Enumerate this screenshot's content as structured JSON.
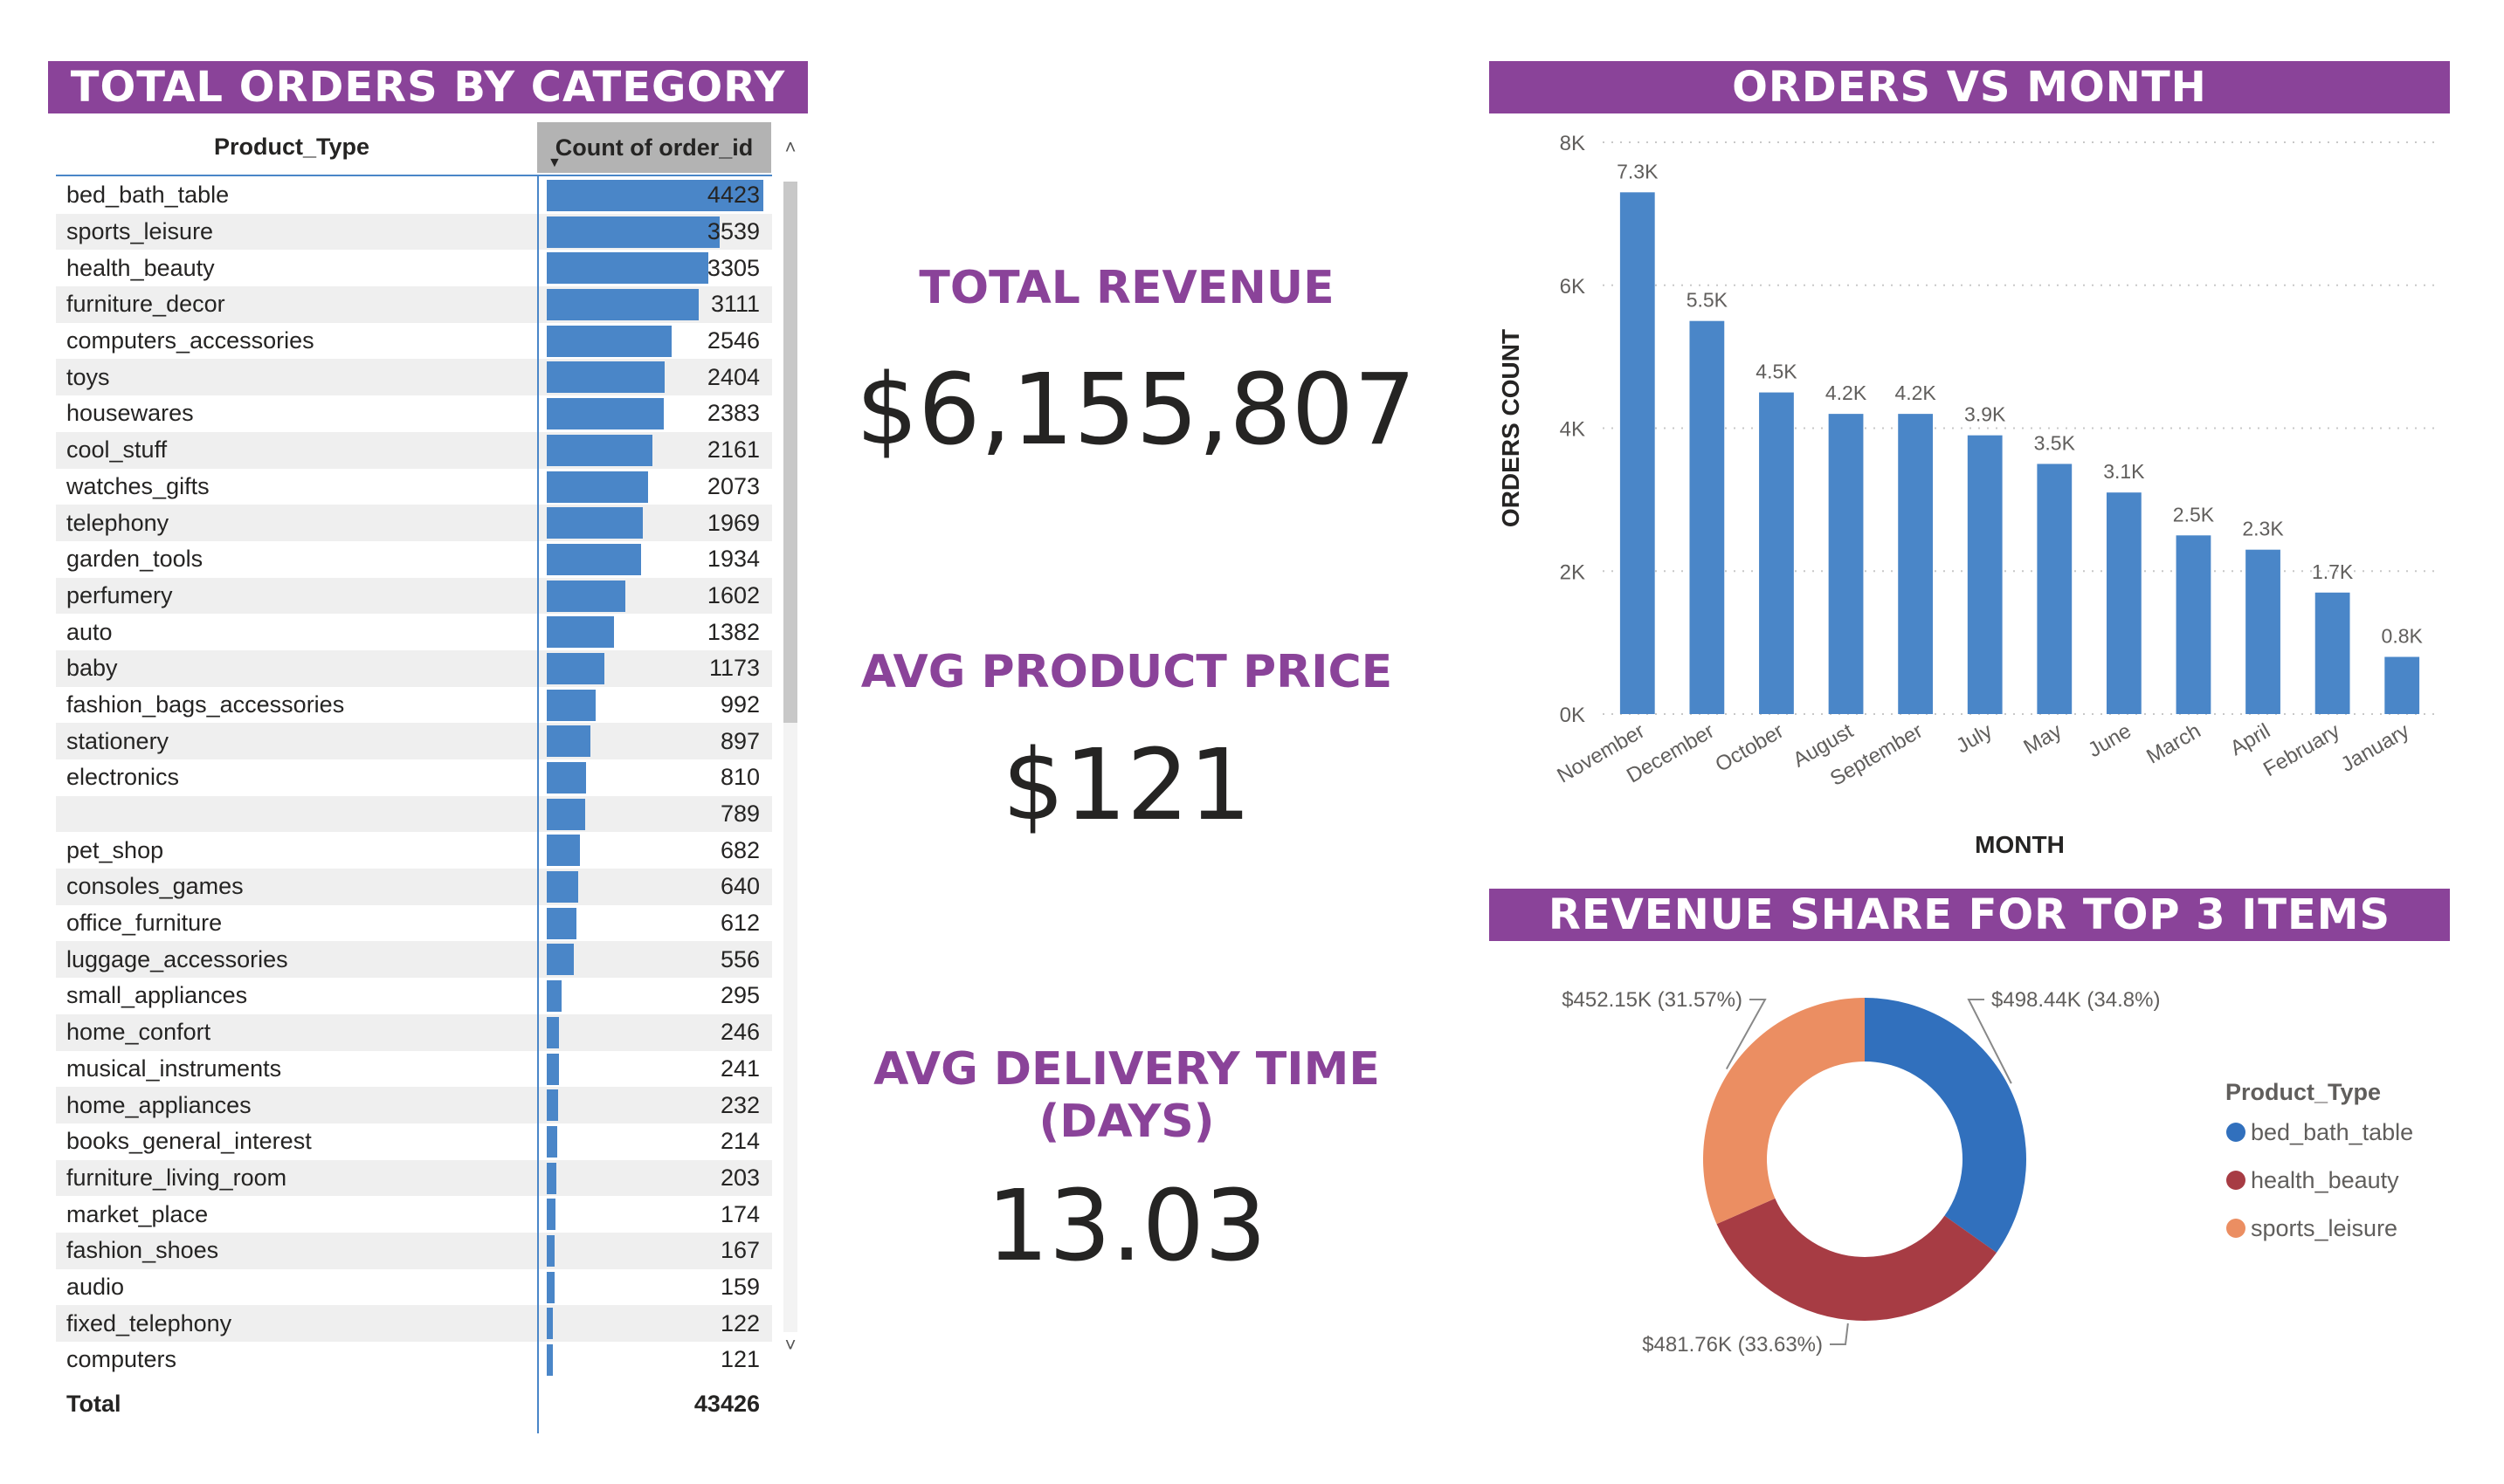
{
  "orders_table": {
    "title": "TOTAL ORDERS BY CATEGORY",
    "col_product": "Product_Type",
    "col_count": "Count of order_id",
    "rows": [
      {
        "label": "bed_bath_table",
        "value": 4423
      },
      {
        "label": "sports_leisure",
        "value": 3539
      },
      {
        "label": "health_beauty",
        "value": 3305
      },
      {
        "label": "furniture_decor",
        "value": 3111
      },
      {
        "label": "computers_accessories",
        "value": 2546
      },
      {
        "label": "toys",
        "value": 2404
      },
      {
        "label": "housewares",
        "value": 2383
      },
      {
        "label": "cool_stuff",
        "value": 2161
      },
      {
        "label": "watches_gifts",
        "value": 2073
      },
      {
        "label": "telephony",
        "value": 1969
      },
      {
        "label": "garden_tools",
        "value": 1934
      },
      {
        "label": "perfumery",
        "value": 1602
      },
      {
        "label": "auto",
        "value": 1382
      },
      {
        "label": "baby",
        "value": 1173
      },
      {
        "label": "fashion_bags_accessories",
        "value": 992
      },
      {
        "label": "stationery",
        "value": 897
      },
      {
        "label": "electronics",
        "value": 810
      },
      {
        "label": "",
        "value": 789
      },
      {
        "label": "pet_shop",
        "value": 682
      },
      {
        "label": "consoles_games",
        "value": 640
      },
      {
        "label": "office_furniture",
        "value": 612
      },
      {
        "label": "luggage_accessories",
        "value": 556
      },
      {
        "label": "small_appliances",
        "value": 295
      },
      {
        "label": "home_confort",
        "value": 246
      },
      {
        "label": "musical_instruments",
        "value": 241
      },
      {
        "label": "home_appliances",
        "value": 232
      },
      {
        "label": "books_general_interest",
        "value": 214
      },
      {
        "label": "furniture_living_room",
        "value": 203
      },
      {
        "label": "market_place",
        "value": 174
      },
      {
        "label": "fashion_shoes",
        "value": 167
      },
      {
        "label": "audio",
        "value": 159
      },
      {
        "label": "fixed_telephony",
        "value": 122
      },
      {
        "label": "computers",
        "value": 121
      }
    ],
    "total_label": "Total",
    "total_value": "43426",
    "scroll_up_glyph": "˄",
    "scroll_down_glyph": "˅",
    "sort_glyph": "▼",
    "bar_color": "#4a86c8"
  },
  "kpis": {
    "revenue_title": "TOTAL REVENUE",
    "revenue_value": "$6,155,807",
    "price_title": "AVG PRODUCT PRICE",
    "price_value": "$121",
    "delivery_title_line1": "AVG DELIVERY TIME",
    "delivery_title_line2": "(DAYS)",
    "delivery_value": "13.03"
  },
  "theme": {
    "banner_color": "#8a4399",
    "kpi_title_color": "#8a4399",
    "bar_color": "#4a86c8"
  },
  "orders_chart_banner": "ORDERS VS MONTH",
  "pie_chart_banner": "REVENUE SHARE FOR TOP 3 ITEMS",
  "chart_data": [
    {
      "type": "bar",
      "title": "ORDERS VS MONTH",
      "xlabel": "MONTH",
      "ylabel": "ORDERS COUNT",
      "categories": [
        "November",
        "December",
        "October",
        "August",
        "September",
        "July",
        "May",
        "June",
        "March",
        "April",
        "February",
        "January"
      ],
      "values": [
        7300,
        5500,
        4500,
        4200,
        4200,
        3900,
        3500,
        3100,
        2500,
        2300,
        1700,
        800
      ],
      "data_labels": [
        "7.3K",
        "5.5K",
        "4.5K",
        "4.2K",
        "4.2K",
        "3.9K",
        "3.5K",
        "3.1K",
        "2.5K",
        "2.3K",
        "1.7K",
        "0.8K"
      ],
      "yticks": [
        "0K",
        "2K",
        "4K",
        "6K",
        "8K"
      ],
      "ylim": [
        0,
        8000
      ],
      "grid": true,
      "color": "#4a86c8"
    },
    {
      "type": "pie",
      "title": "REVENUE SHARE FOR TOP 3 ITEMS",
      "legend_title": "Product_Type",
      "legend_position": "right",
      "slices": [
        {
          "name": "bed_bath_table",
          "value": 498.44,
          "label": "$498.44K (34.8%)",
          "color": "#3170bd"
        },
        {
          "name": "health_beauty",
          "value": 481.76,
          "label": "$481.76K (33.63%)",
          "color": "#a73c44"
        },
        {
          "name": "sports_leisure",
          "value": 452.15,
          "label": "$452.15K (31.57%)",
          "color": "#eb8e62"
        }
      ]
    }
  ]
}
